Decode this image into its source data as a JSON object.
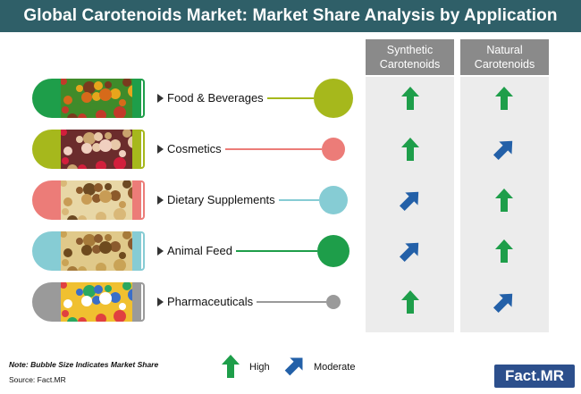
{
  "title": "Global Carotenoids Market: Market Share Analysis by Application",
  "columns": [
    {
      "line1": "Synthetic",
      "line2": "Carotenoids"
    },
    {
      "line1": "Natural",
      "line2": "Carotenoids"
    }
  ],
  "rows": [
    {
      "label": "Food & Beverages",
      "color": "#1e9e4a",
      "bubble_color": "#a6b81c",
      "synthetic": "High",
      "natural": "High"
    },
    {
      "label": "Cosmetics",
      "color": "#a6b81c",
      "bubble_color": "#ec7c78",
      "synthetic": "High",
      "natural": "Moderate"
    },
    {
      "label": "Dietary Supplements",
      "color": "#ec7c78",
      "bubble_color": "#86ccd4",
      "synthetic": "Moderate",
      "natural": "High"
    },
    {
      "label": "Animal Feed",
      "color": "#86ccd4",
      "bubble_color": "#1e9e4a",
      "synthetic": "Moderate",
      "natural": "High"
    },
    {
      "label": "Pharmaceuticals",
      "color": "#9a9a9a",
      "bubble_color": "#9a9a9a",
      "synthetic": "High",
      "natural": "Moderate"
    }
  ],
  "note": "Note: Bubble Size Indicates Market Share",
  "source": "Source: Fact.MR",
  "legend": {
    "high_label": "High",
    "moderate_label": "Moderate",
    "high_color": "#1e9e4a",
    "moderate_color": "#2360a8"
  },
  "logo": "Fact.MR"
}
